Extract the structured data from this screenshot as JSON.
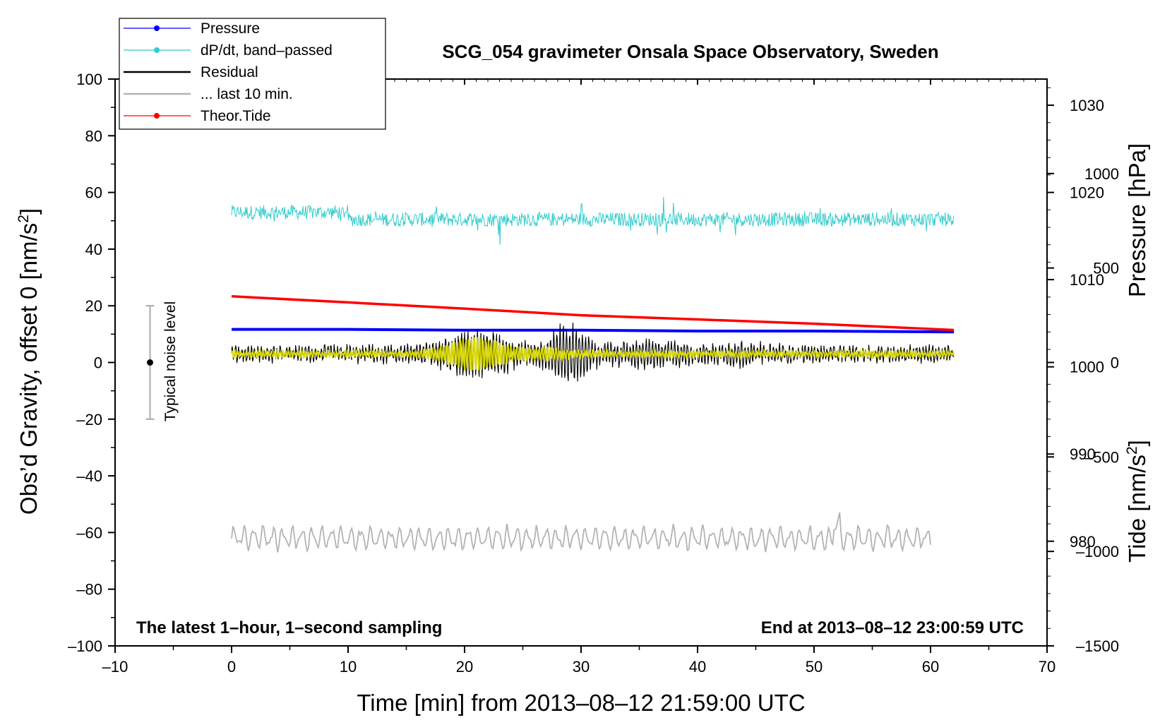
{
  "chart_data": {
    "type": "line",
    "title": "SCG_054 gravimeter Onsala Space Observatory, Sweden",
    "xlabel": "Time [min] from 2013–08–12 21:59:00 UTC",
    "ylabel": "Obs’d Gravity, offset 0 [nm/s²]",
    "ylabel_right_pressure": "Pressure [hPa]",
    "ylabel_right_tide": "Tide [nm/s²]",
    "xlim": [
      -10,
      70
    ],
    "ylim": [
      -100,
      100
    ],
    "pressure_lim": [
      968,
      1033
    ],
    "tide_lim": [
      -1500,
      1500
    ],
    "x_ticks": [
      "–10",
      "0",
      "10",
      "20",
      "30",
      "40",
      "50",
      "60",
      "70"
    ],
    "y_ticks": [
      "100",
      "80",
      "60",
      "40",
      "20",
      "0",
      "–20",
      "–40",
      "–60",
      "–80",
      "–100"
    ],
    "pressure_ticks": [
      "1030",
      "1020",
      "1010",
      "1000",
      "990",
      "980"
    ],
    "tide_ticks": [
      "1000",
      "500",
      "0",
      "–500",
      "–1000",
      "–1500"
    ],
    "grid": false,
    "legend_position": "top-left",
    "legend": [
      {
        "label": "Pressure",
        "color": "#0000ff"
      },
      {
        "label": "dP/dt, band–passed",
        "color": "#33cccc"
      },
      {
        "label": "Residual",
        "color": "#000000"
      },
      {
        "label": "... last 10 min.",
        "color": "#b3b3b3"
      },
      {
        "label": "Theor.Tide",
        "color": "#ff0000"
      }
    ],
    "noise_bar": {
      "label": "Typical noise level",
      "x": -7,
      "center": 0,
      "low": -20,
      "high": 20
    },
    "note_left": "The latest 1–hour, 1–second sampling",
    "note_right": "End at 2013–08–12 23:00:59 UTC",
    "series": [
      {
        "name": "Pressure",
        "axis": "pressure",
        "color": "#0000ff",
        "x": [
          0,
          10,
          20,
          30,
          40,
          50,
          62
        ],
        "y": [
          1004.3,
          1004.3,
          1004.2,
          1004.2,
          1004.1,
          1004.1,
          1004.0
        ]
      },
      {
        "name": "Theor.Tide",
        "axis": "tide",
        "color": "#ff0000",
        "x": [
          0,
          10,
          20,
          30,
          40,
          50,
          62
        ],
        "y": [
          350,
          318,
          285,
          250,
          228,
          205,
          172
        ]
      }
    ]
  }
}
